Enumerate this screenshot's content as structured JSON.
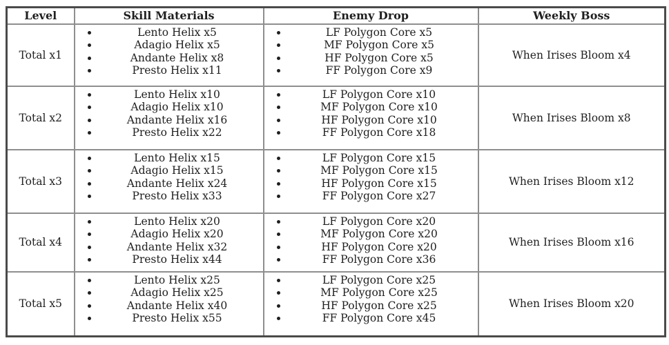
{
  "colors": {
    "border_outer": "#4a4a4a",
    "border_inner": "#8e8e8e",
    "text": "#1f1f1f",
    "bg": "#ffffff"
  },
  "table": {
    "headers": [
      "Level",
      "Skill Materials",
      "Enemy Drop",
      "Weekly Boss"
    ],
    "rows": [
      {
        "level": "Total x1",
        "skill_materials": [
          "Lento Helix x5",
          "Adagio Helix x5",
          "Andante Helix x8",
          "Presto Helix x11"
        ],
        "enemy_drop": [
          "LF Polygon Core x5",
          "MF Polygon Core x5",
          "HF Polygon Core x5",
          "FF Polygon Core x9"
        ],
        "weekly_boss": "When Irises Bloom x4"
      },
      {
        "level": "Total x2",
        "skill_materials": [
          "Lento Helix x10",
          "Adagio Helix x10",
          "Andante Helix x16",
          "Presto Helix x22"
        ],
        "enemy_drop": [
          "LF Polygon Core x10",
          "MF Polygon Core x10",
          "HF Polygon Core x10",
          "FF Polygon Core x18"
        ],
        "weekly_boss": "When Irises Bloom x8"
      },
      {
        "level": "Total x3",
        "skill_materials": [
          "Lento Helix x15",
          "Adagio Helix x15",
          "Andante Helix x24",
          "Presto Helix x33"
        ],
        "enemy_drop": [
          "LF Polygon Core x15",
          "MF Polygon Core x15",
          "HF Polygon Core x15",
          "FF Polygon Core x27"
        ],
        "weekly_boss": "When Irises Bloom x12"
      },
      {
        "level": "Total x4",
        "skill_materials": [
          "Lento Helix x20",
          "Adagio Helix x20",
          "Andante Helix x32",
          "Presto Helix x44"
        ],
        "enemy_drop": [
          "LF Polygon Core x20",
          "MF Polygon Core x20",
          "HF Polygon Core x20",
          "FF Polygon Core x36"
        ],
        "weekly_boss": "When Irises Bloom x16"
      },
      {
        "level": "Total x5",
        "skill_materials": [
          "Lento Helix x25",
          "Adagio Helix x25",
          "Andante Helix x40",
          "Presto Helix x55"
        ],
        "enemy_drop": [
          "LF Polygon Core x25",
          "MF Polygon Core x25",
          "HF Polygon Core x25",
          "FF Polygon Core x45"
        ],
        "weekly_boss": "When Irises Bloom x20"
      }
    ]
  }
}
